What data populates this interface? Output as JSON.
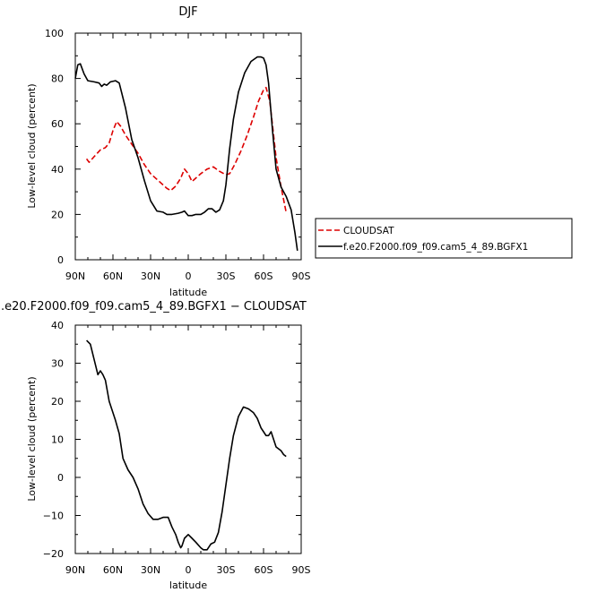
{
  "chart_data": [
    {
      "type": "line",
      "title": "DJF",
      "xlabel": "latitude",
      "ylabel": "Low-level cloud (percent)",
      "xlim": [
        90,
        -90
      ],
      "ylim": [
        0,
        100
      ],
      "x_ticks": [
        {
          "value": 90,
          "label": "90N"
        },
        {
          "value": 60,
          "label": "60N"
        },
        {
          "value": 30,
          "label": "30N"
        },
        {
          "value": 0,
          "label": "0"
        },
        {
          "value": -30,
          "label": "30S"
        },
        {
          "value": -60,
          "label": "60S"
        },
        {
          "value": -90,
          "label": "90S"
        }
      ],
      "y_ticks": [
        0,
        20,
        40,
        60,
        80,
        100
      ],
      "grid": false,
      "legend": {
        "placement": "right"
      },
      "series": [
        {
          "name": "CLOUDSAT",
          "color": "#dd0000",
          "dash": "dashed",
          "x": [
            81,
            79,
            75,
            70,
            66,
            63,
            60,
            57,
            54,
            50,
            45,
            40,
            35,
            30,
            25,
            20,
            17,
            14,
            10,
            6,
            3,
            0,
            -3,
            -6,
            -10,
            -15,
            -20,
            -25,
            -30,
            -33,
            -37,
            -42,
            -47,
            -52,
            -56,
            -60,
            -62,
            -65,
            -70,
            -74,
            -78
          ],
          "values": [
            44.5,
            43,
            45.5,
            48.5,
            49.5,
            51.5,
            57,
            61,
            59,
            55,
            51,
            47,
            42,
            38,
            35.5,
            33,
            31.5,
            30.5,
            32.5,
            36,
            40,
            38,
            34.5,
            36,
            38,
            40,
            41,
            39,
            37.5,
            38,
            42,
            48,
            55,
            63,
            70,
            75,
            76,
            70,
            45,
            32,
            21
          ]
        },
        {
          "name": "f.e20.F2000.f09_f09.cam5_4_89.BGFX1",
          "color": "#000000",
          "dash": "solid",
          "x": [
            90,
            88,
            86,
            83,
            80,
            75,
            71,
            69,
            67,
            65,
            62,
            58,
            55,
            50,
            45,
            40,
            35,
            30,
            25,
            20,
            17,
            13,
            8,
            5,
            3,
            0,
            -3,
            -6,
            -10,
            -13,
            -16,
            -19,
            -22,
            -25,
            -28,
            -30,
            -33,
            -36,
            -40,
            -45,
            -50,
            -55,
            -58,
            -60,
            -62,
            -64,
            -67,
            -70,
            -74,
            -78,
            -82,
            -85,
            -87
          ],
          "values": [
            80,
            86,
            86.5,
            82,
            79,
            78.5,
            78,
            76.5,
            77.5,
            77,
            78.5,
            79,
            78,
            67,
            53,
            45,
            35,
            26,
            21.5,
            21,
            20,
            20,
            20.5,
            21,
            21.5,
            19.5,
            19.5,
            20,
            20,
            21,
            22.5,
            22.5,
            21,
            22,
            26,
            33,
            49,
            62,
            74,
            82.5,
            87.5,
            89.5,
            89.5,
            89,
            86,
            78,
            58,
            40,
            32,
            28,
            22,
            12,
            4
          ]
        }
      ]
    },
    {
      "type": "line",
      "title": ".e20.F2000.f09_f09.cam5_4_89.BGFX1 − CLOUDSAT",
      "xlabel": "latitude",
      "ylabel": "Low-level cloud (percent)",
      "xlim": [
        90,
        -90
      ],
      "ylim": [
        -20,
        40
      ],
      "x_ticks": [
        {
          "value": 90,
          "label": "90N"
        },
        {
          "value": 60,
          "label": "60N"
        },
        {
          "value": 30,
          "label": "30N"
        },
        {
          "value": 0,
          "label": "0"
        },
        {
          "value": -30,
          "label": "30S"
        },
        {
          "value": -60,
          "label": "60S"
        },
        {
          "value": -90,
          "label": "90S"
        }
      ],
      "y_ticks": [
        -20,
        -10,
        0,
        10,
        20,
        30,
        40
      ],
      "grid": false,
      "series": [
        {
          "color": "#000000",
          "dash": "solid",
          "x": [
            81,
            78,
            75,
            72,
            70,
            68,
            66,
            63,
            61,
            58,
            55,
            52,
            48,
            44,
            40,
            36,
            32,
            28,
            24,
            20,
            16,
            13,
            10,
            8,
            6,
            5,
            3,
            0,
            -3,
            -6,
            -10,
            -12,
            -15,
            -18,
            -21,
            -24,
            -27,
            -30,
            -33,
            -36,
            -40,
            -44,
            -48,
            -52,
            -55,
            -58,
            -60,
            -62,
            -64,
            -66,
            -68,
            -70,
            -72,
            -74,
            -76,
            -78
          ],
          "values": [
            36,
            35,
            31,
            27,
            28,
            27,
            25.5,
            20,
            18,
            15,
            11.5,
            5,
            2,
            0,
            -3,
            -7,
            -9.5,
            -11,
            -11,
            -10.5,
            -10.5,
            -13,
            -15,
            -17,
            -18.5,
            -18,
            -16,
            -15,
            -16,
            -17,
            -18.5,
            -19,
            -19,
            -17.5,
            -17,
            -14.5,
            -9,
            -2,
            5,
            11,
            16,
            18.5,
            18,
            17,
            15.5,
            13,
            12,
            11,
            11,
            12,
            10,
            8,
            7.5,
            7,
            6,
            5.5
          ]
        }
      ]
    }
  ]
}
